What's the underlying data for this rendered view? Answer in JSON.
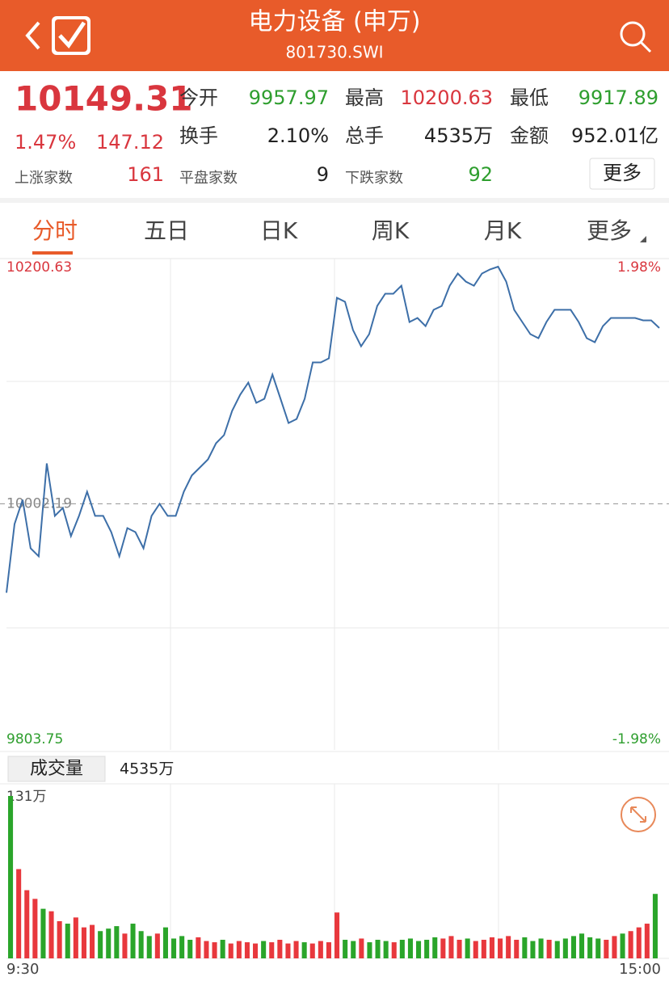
{
  "header": {
    "title": "电力设备 (申万)",
    "code": "801730.SWI"
  },
  "quote": {
    "price": "10149.31",
    "change_pct": "1.47%",
    "change": "147.12",
    "stats": [
      {
        "label": "今开",
        "value": "9957.97",
        "color": "#2e9e2e"
      },
      {
        "label": "最高",
        "value": "10200.63",
        "color": "#d9363e"
      },
      {
        "label": "最低",
        "value": "9917.89",
        "color": "#2e9e2e"
      },
      {
        "label": "换手",
        "value": "2.10%",
        "color": "#222222"
      },
      {
        "label": "总手",
        "value": "4535万",
        "color": "#222222"
      },
      {
        "label": "金额",
        "value": "952.01亿",
        "color": "#222222"
      },
      {
        "label": "上涨家数",
        "value": "161",
        "color": "#d9363e"
      },
      {
        "label": "平盘家数",
        "value": "9",
        "color": "#222222"
      },
      {
        "label": "下跌家数",
        "value": "92",
        "color": "#2e9e2e"
      }
    ],
    "more_button": "更多"
  },
  "tabs": [
    "分时",
    "五日",
    "日K",
    "周K",
    "月K",
    "更多"
  ],
  "volume_header": {
    "button": "成交量",
    "total": "4535万"
  },
  "chart_data": [
    {
      "type": "line",
      "color": "#3d6fa8",
      "values": [
        9927.8,
        9985.3,
        10005.6,
        9965.0,
        9958.3,
        10036.0,
        9992.1,
        9998.8,
        9975.2,
        9992.1,
        10012.3,
        9992.1,
        9992.1,
        9978.5,
        9958.3,
        9981.9,
        9978.5,
        9965.0,
        9992.1,
        10002.2,
        9992.1,
        9992.1,
        10012.3,
        10025.9,
        10032.6,
        10039.4,
        10052.9,
        10059.7,
        10080.0,
        10093.5,
        10103.6,
        10086.7,
        10090.1,
        10110.4,
        10090.1,
        10069.8,
        10073.2,
        10090.1,
        10120.5,
        10120.5,
        10123.9,
        10174.6,
        10171.2,
        10147.6,
        10134.0,
        10144.2,
        10167.8,
        10178.0,
        10178.0,
        10184.7,
        10154.3,
        10157.7,
        10150.9,
        10164.5,
        10167.8,
        10184.7,
        10194.9,
        10188.1,
        10184.7,
        10194.9,
        10198.3,
        10200.6,
        10188.1,
        10164.5,
        10154.3,
        10144.2,
        10140.8,
        10154.3,
        10164.5,
        10164.5,
        10164.5,
        10154.3,
        10140.8,
        10137.4,
        10150.9,
        10157.7,
        10157.7,
        10157.7,
        10157.7,
        10155.7,
        10155.7,
        10149.3
      ],
      "ylim": [
        9803.75,
        10200.63
      ],
      "yticks": [
        {
          "value": 10200.63,
          "label": "10200.63"
        },
        {
          "value": 10002.19,
          "label": "10002.19"
        },
        {
          "value": 9803.75,
          "label": "9803.75"
        }
      ],
      "y2lim": [
        -1.98,
        1.98
      ],
      "y2ticks": [
        {
          "value": 1.98,
          "label": "1.98%"
        },
        {
          "value": -1.98,
          "label": "-1.98%"
        }
      ]
    },
    {
      "type": "bar",
      "categories": [
        "9:30",
        null,
        null,
        null,
        null,
        null,
        null,
        null,
        null,
        null,
        null,
        null,
        null,
        null,
        null,
        null,
        null,
        null,
        null,
        null,
        null,
        null,
        null,
        null,
        null,
        null,
        null,
        null,
        null,
        null,
        null,
        null,
        null,
        null,
        null,
        null,
        null,
        null,
        null,
        null,
        null,
        null,
        null,
        null,
        null,
        null,
        null,
        null,
        null,
        null,
        null,
        null,
        null,
        null,
        null,
        null,
        null,
        null,
        null,
        null,
        null,
        null,
        null,
        null,
        null,
        null,
        null,
        null,
        null,
        null,
        null,
        null,
        null,
        null,
        null,
        null,
        null,
        null,
        null,
        "15:00"
      ],
      "values": [
        131,
        72,
        55,
        48,
        40,
        38,
        30,
        28,
        33,
        25,
        27,
        22,
        24,
        26,
        20,
        28,
        22,
        18,
        20,
        25,
        16,
        18,
        15,
        17,
        14,
        13,
        15,
        12,
        14,
        13,
        12,
        14,
        13,
        15,
        12,
        14,
        13,
        12,
        14,
        13,
        37,
        15,
        14,
        16,
        13,
        15,
        14,
        13,
        15,
        16,
        14,
        15,
        17,
        16,
        18,
        15,
        16,
        14,
        15,
        17,
        16,
        18,
        15,
        17,
        14,
        16,
        15,
        14,
        16,
        18,
        20,
        17,
        16,
        15,
        18,
        20,
        22,
        25,
        28,
        52
      ],
      "colors": [
        "#2aa52a",
        "#e8383d",
        "#e8383d",
        "#e8383d",
        "#2aa52a",
        "#e8383d",
        "#e8383d",
        "#2aa52a",
        "#e8383d",
        "#e8383d",
        "#e8383d",
        "#2aa52a",
        "#2aa52a",
        "#2aa52a",
        "#e8383d",
        "#2aa52a",
        "#2aa52a",
        "#2aa52a",
        "#e8383d",
        "#2aa52a",
        "#2aa52a",
        "#2aa52a",
        "#2aa52a",
        "#e8383d",
        "#e8383d",
        "#e8383d",
        "#2aa52a",
        "#e8383d",
        "#e8383d",
        "#e8383d",
        "#e8383d",
        "#2aa52a",
        "#e8383d",
        "#e8383d",
        "#e8383d",
        "#e8383d",
        "#2aa52a",
        "#e8383d",
        "#e8383d",
        "#e8383d",
        "#e8383d",
        "#2aa52a",
        "#2aa52a",
        "#e8383d",
        "#2aa52a",
        "#2aa52a",
        "#2aa52a",
        "#e8383d",
        "#2aa52a",
        "#2aa52a",
        "#2aa52a",
        "#2aa52a",
        "#2aa52a",
        "#e8383d",
        "#e8383d",
        "#e8383d",
        "#2aa52a",
        "#e8383d",
        "#e8383d",
        "#e8383d",
        "#e8383d",
        "#e8383d",
        "#e8383d",
        "#2aa52a",
        "#2aa52a",
        "#2aa52a",
        "#e8383d",
        "#2aa52a",
        "#2aa52a",
        "#2aa52a",
        "#2aa52a",
        "#2aa52a",
        "#2aa52a",
        "#e8383d",
        "#e8383d",
        "#2aa52a",
        "#e8383d",
        "#e8383d",
        "#e8383d",
        "#2aa52a"
      ],
      "ylim": [
        0,
        131
      ],
      "yticks": [
        {
          "value": 131,
          "label": "131万"
        }
      ]
    }
  ]
}
